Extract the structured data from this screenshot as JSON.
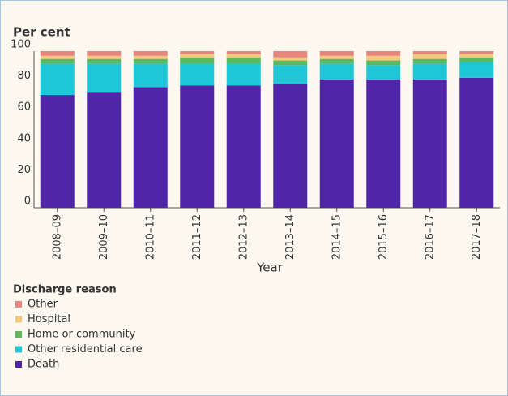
{
  "chart_data": {
    "type": "stacked_bar",
    "y_label": "Per cent",
    "x_label": "Year",
    "legend_title": "Discharge reason",
    "categories": [
      "2008–09",
      "2009–10",
      "2010–11",
      "2011–12",
      "2012–13",
      "2013–14",
      "2014–15",
      "2015–16",
      "2016–17",
      "2017–18"
    ],
    "series": [
      {
        "name": "Other",
        "color": "#e5857b",
        "values": [
          3,
          3,
          3,
          2,
          2,
          4,
          3,
          3,
          2,
          2
        ]
      },
      {
        "name": "Hospital",
        "color": "#f3c77c",
        "values": [
          2,
          2,
          2,
          2,
          2,
          2,
          2,
          3,
          3,
          2
        ]
      },
      {
        "name": "Home or community",
        "color": "#5cb85c",
        "values": [
          3,
          3,
          3,
          4,
          4,
          3,
          3,
          3,
          3,
          3
        ]
      },
      {
        "name": "Other residential care",
        "color": "#1ec6d6",
        "values": [
          20,
          18,
          15,
          14,
          14,
          12,
          10,
          9,
          10,
          10
        ]
      },
      {
        "name": "Death",
        "color": "#5026a8",
        "values": [
          72,
          74,
          77,
          78,
          78,
          79,
          82,
          82,
          82,
          83
        ]
      }
    ],
    "ylim": [
      0,
      100
    ],
    "yticks": [
      0,
      20,
      40,
      60,
      80,
      100
    ]
  }
}
